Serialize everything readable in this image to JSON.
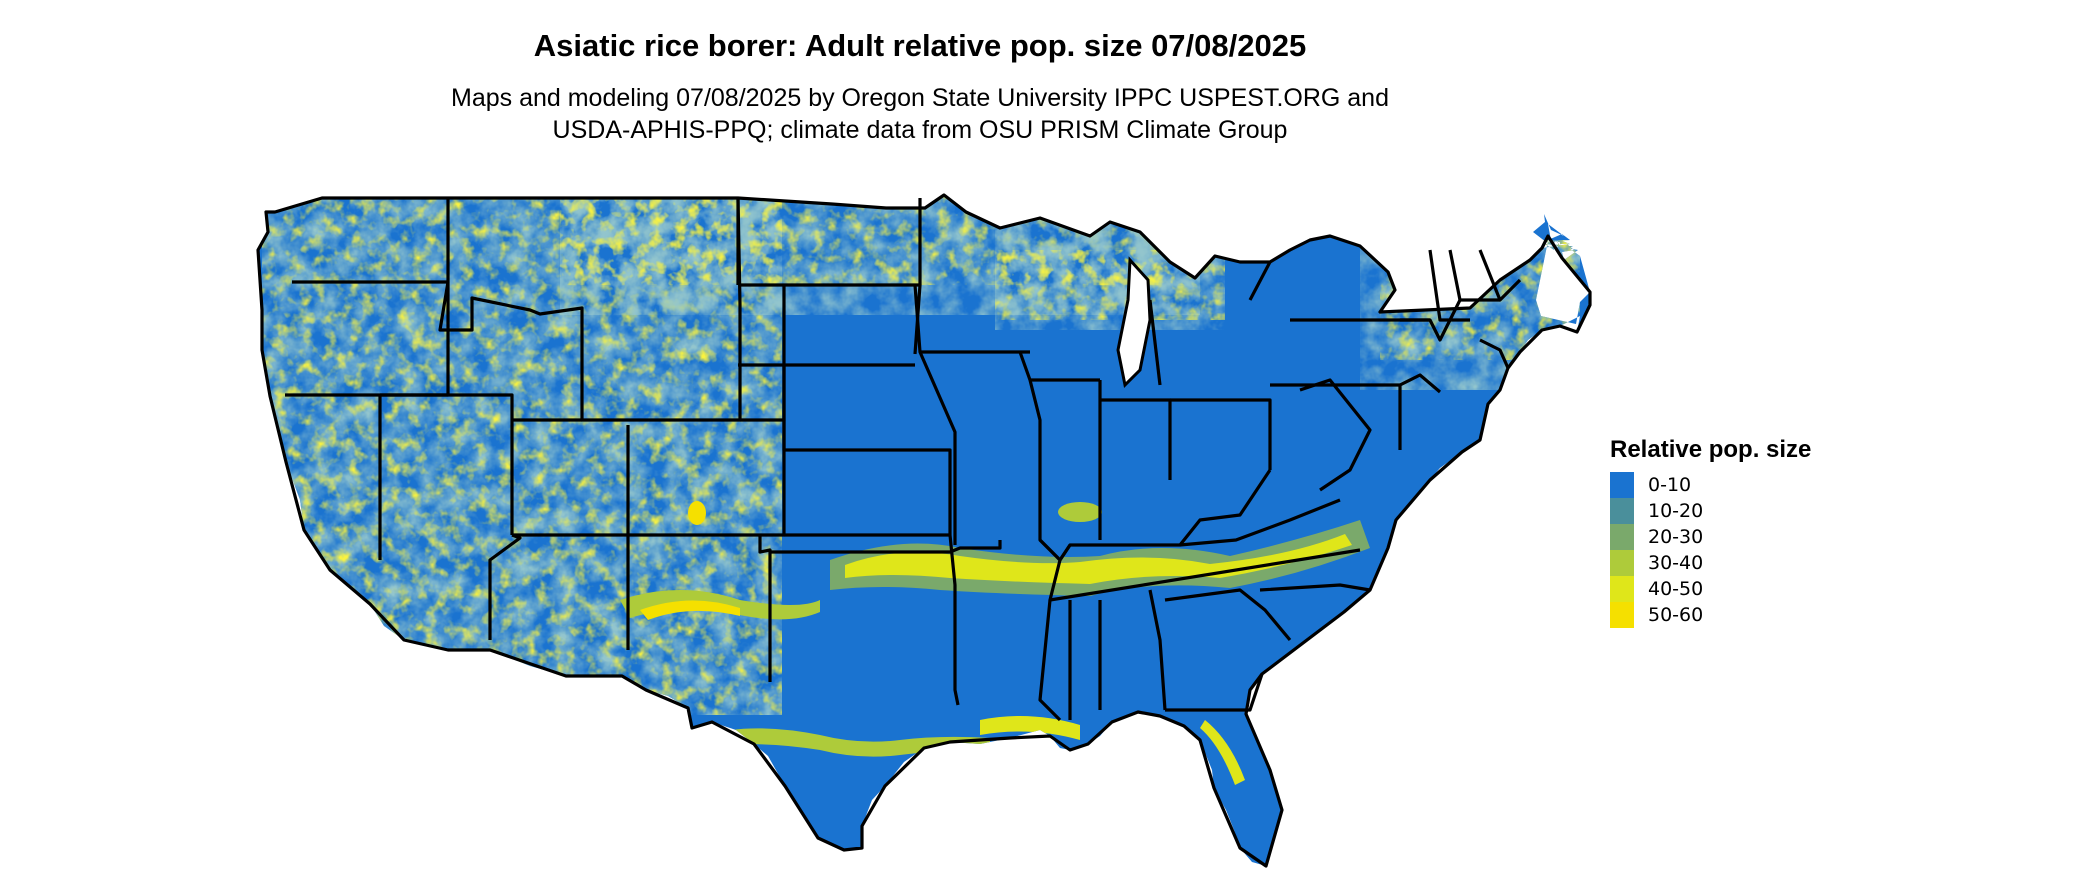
{
  "title": "Asiatic rice borer: Adult relative pop. size 07/08/2025",
  "subtitle_line1": "Maps and modeling 07/08/2025 by Oregon State University IPPC USPEST.ORG and",
  "subtitle_line2": "USDA-APHIS-PPQ; climate data from OSU PRISM Climate Group",
  "legend": {
    "title": "Relative pop. size",
    "items": [
      {
        "label": "0-10",
        "color": "#1a73d0"
      },
      {
        "label": "10-20",
        "color": "#4a8f9b"
      },
      {
        "label": "20-30",
        "color": "#7aa96b"
      },
      {
        "label": "30-40",
        "color": "#aecb3a"
      },
      {
        "label": "40-50",
        "color": "#dfe61a"
      },
      {
        "label": "50-60",
        "color": "#f5e000"
      }
    ]
  },
  "colors": {
    "background": "#ffffff",
    "state_border": "#000000",
    "base": "#1a73d0"
  }
}
